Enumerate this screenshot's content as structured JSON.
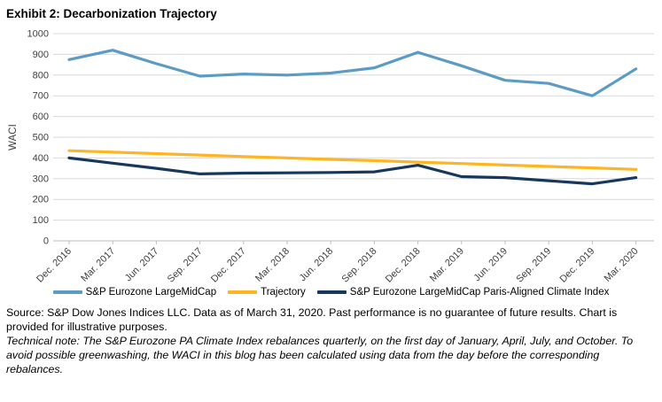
{
  "title": "Exhibit 2: Decarbonization Trajectory",
  "chart_data": {
    "type": "line",
    "title": "Exhibit 2: Decarbonization Trajectory",
    "xlabel": "",
    "ylabel": "WACI",
    "ylim": [
      0,
      1000
    ],
    "ytick_step": 100,
    "grid": "horizontal",
    "legend_position": "bottom",
    "categories": [
      "Dec. 2016",
      "Mar. 2017",
      "Jun. 2017",
      "Sep. 2017",
      "Dec. 2017",
      "Mar. 2018",
      "Jun. 2018",
      "Sep. 2018",
      "Dec. 2018",
      "Mar. 2019",
      "Jun. 2019",
      "Sep. 2019",
      "Dec. 2019",
      "Mar. 2020"
    ],
    "series": [
      {
        "name": "S&P Eurozone LargeMidCap",
        "color": "#5B9BC4",
        "values": [
          875,
          920,
          855,
          795,
          805,
          800,
          810,
          835,
          910,
          845,
          775,
          760,
          700,
          830
        ]
      },
      {
        "name": "Trajectory",
        "color": "#FFB421",
        "values": [
          435,
          428,
          421,
          414,
          407,
          400,
          393,
          387,
          380,
          373,
          366,
          359,
          352,
          345
        ]
      },
      {
        "name": "S&P Eurozone LargeMidCap Paris-Aligned Climate Index",
        "color": "#17375D",
        "values": [
          400,
          375,
          350,
          323,
          327,
          328,
          330,
          333,
          365,
          310,
          305,
          290,
          275,
          305
        ]
      }
    ],
    "axis_text_color": "#404040",
    "gridline_color": "#D9D9D9",
    "axisline_color": "#BFBFBF"
  },
  "footer": {
    "source": "Source: S&P Dow Jones Indices LLC. Data as of March 31, 2020. Past performance is no guarantee of future results. Chart is provided for illustrative purposes.",
    "technical_note": "Technical note: The S&P Eurozone PA Climate Index rebalances quarterly, on the first day of January, April, July, and October. To avoid possible greenwashing, the WACI in this blog has been calculated using data from the day before the corresponding rebalances."
  }
}
